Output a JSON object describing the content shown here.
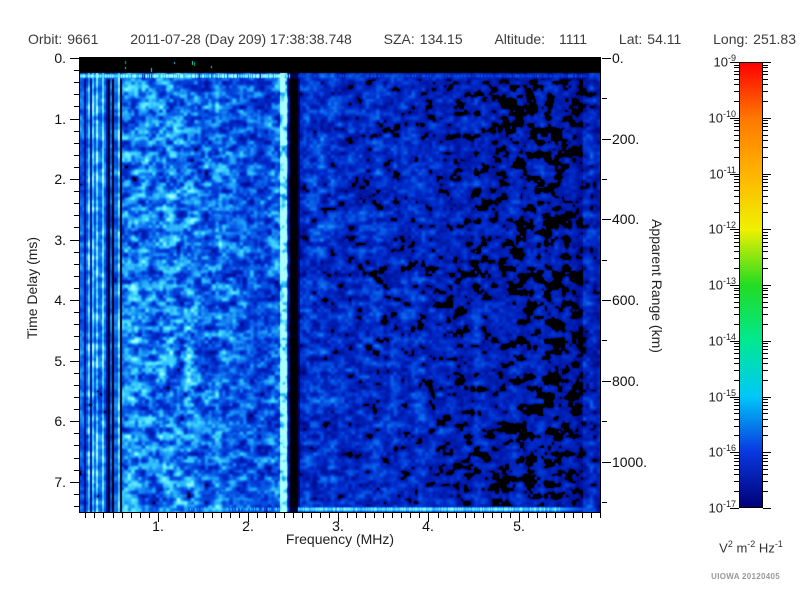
{
  "header": {
    "fields": [
      {
        "label": "Orbit:",
        "value": "9661"
      },
      {
        "label": "",
        "value": "2011-07-28 (Day 209) 17:38:38.748"
      },
      {
        "label": "SZA:",
        "value": "134.15"
      },
      {
        "label": "Altitude:",
        "value": "1111"
      },
      {
        "label": "Lat:",
        "value": "54.11"
      },
      {
        "label": "Long:",
        "value": "251.83"
      }
    ]
  },
  "watermark": "UIOWA 20120405",
  "chart_data": {
    "type": "heatmap",
    "title": "",
    "xlabel": "Frequency (MHz)",
    "ylabel_left": "Time Delay (ms)",
    "ylabel_right": "Apparent Range (km)",
    "x_axis": {
      "range_mhz": [
        0.14,
        5.9
      ],
      "major_ticks": [
        1,
        2,
        3,
        4,
        5
      ],
      "major_tick_labels": [
        "1.",
        "2.",
        "3.",
        "4.",
        "5."
      ],
      "minor_step": 0.1
    },
    "left_axis": {
      "range_ms": [
        0,
        7.5
      ],
      "major_ticks": [
        0,
        1,
        2,
        3,
        4,
        5,
        6,
        7
      ],
      "major_tick_labels": [
        "0.",
        "1.",
        "2.",
        "3.",
        "4.",
        "5.",
        "6.",
        "7."
      ],
      "minor_step": 0.2
    },
    "right_axis": {
      "range_km": [
        0,
        1125
      ],
      "major_ticks": [
        0,
        200,
        400,
        600,
        800,
        1000
      ],
      "major_tick_labels": [
        "0.",
        "200.",
        "400.",
        "600.",
        "800.",
        "1000."
      ],
      "minor_step": 100
    },
    "colorbar": {
      "tick_base": "10",
      "tick_exponents": [
        "-9",
        "-10",
        "-11",
        "-12",
        "-13",
        "-14",
        "-15",
        "-16",
        "-17"
      ],
      "unit_parts": [
        {
          "base": "V",
          "sup": "2"
        },
        {
          "base": " m",
          "sup": "-2"
        },
        {
          "base": " Hz",
          "sup": "-1"
        }
      ],
      "gradient": [
        [
          "0%",
          "#ff0000"
        ],
        [
          "12.5%",
          "#ff7800"
        ],
        [
          "25%",
          "#ffb400"
        ],
        [
          "37.5%",
          "#f0f000"
        ],
        [
          "50%",
          "#22dc22"
        ],
        [
          "62.5%",
          "#00e890"
        ],
        [
          "75%",
          "#00c8f8"
        ],
        [
          "87.5%",
          "#0938e0"
        ],
        [
          "100%",
          "#000078"
        ]
      ]
    },
    "spectrogram_features": {
      "seed": 20120405,
      "top_blank_band_ms": [
        0,
        0.25
      ],
      "surface_echo_ms": 0.3,
      "ionospheric_stripes_mhz": [
        0.14,
        0.6
      ],
      "bright_noise_band_mhz": [
        0.6,
        1.08
      ],
      "mid_noise_band_mhz": [
        1.08,
        2.4
      ],
      "bright_vertical_line_mhz": 2.4,
      "dark_gap_mhz": 2.5,
      "weak_noise_band_mhz": [
        2.55,
        5.9
      ],
      "bottom_echo_line_ms": 7.45,
      "bottom_echo_span_mhz": [
        2.45,
        5.45
      ],
      "right_bright_band_mhz": 5.7,
      "palette": {
        "black": "#000000",
        "navy": "#000060",
        "blue": "#0030d0",
        "cyan": "#00d8ff"
      }
    }
  }
}
